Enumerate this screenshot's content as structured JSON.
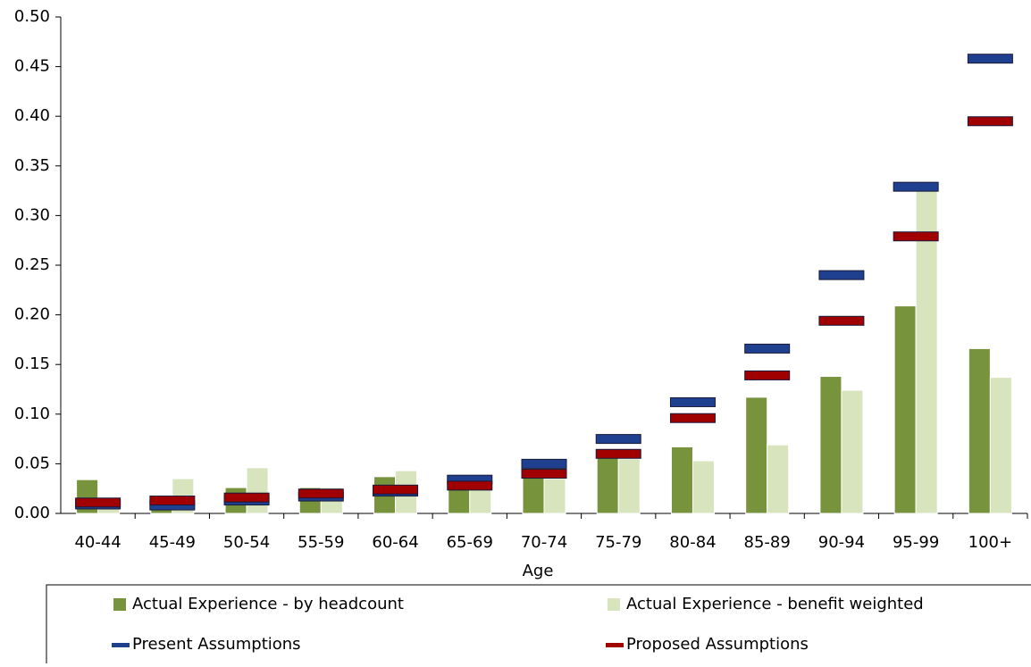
{
  "chart_data": {
    "type": "bar",
    "x_label": "Age",
    "categories": [
      "40-44",
      "45-49",
      "50-54",
      "55-59",
      "60-64",
      "65-69",
      "70-74",
      "75-79",
      "80-84",
      "85-89",
      "90-94",
      "95-99",
      "100+"
    ],
    "series": [
      {
        "name": "Actual Experience - by headcount",
        "color": "#77933c",
        "style": "bar",
        "values": [
          0.034,
          0.01,
          0.026,
          0.026,
          0.037,
          0.034,
          0.04,
          0.058,
          0.067,
          0.117,
          0.138,
          0.209,
          0.166
        ]
      },
      {
        "name": "Actual Experience - benefit weighted",
        "color": "#d7e4bd",
        "style": "bar",
        "values": [
          0.005,
          0.035,
          0.046,
          0.026,
          0.043,
          0.03,
          0.035,
          0.055,
          0.053,
          0.069,
          0.124,
          0.325,
          0.137
        ]
      },
      {
        "name": "Present Assumptions",
        "color": "#1f3f8f",
        "style": "dash",
        "values": [
          0.009,
          0.008,
          0.013,
          0.017,
          0.022,
          0.034,
          0.05,
          0.075,
          0.112,
          0.166,
          0.24,
          0.329,
          0.458
        ]
      },
      {
        "name": "Proposed Assumptions",
        "color": "#a00000",
        "style": "dash",
        "values": [
          0.011,
          0.013,
          0.016,
          0.02,
          0.024,
          0.028,
          0.04,
          0.06,
          0.096,
          0.139,
          0.194,
          0.279,
          0.395
        ]
      }
    ],
    "ylim": [
      0,
      0.5
    ],
    "yticks": [
      {
        "value": 0,
        "label": "0.00"
      },
      {
        "value": 0.05,
        "label": "0.05"
      },
      {
        "value": 0.1,
        "label": "0.10"
      },
      {
        "value": 0.15,
        "label": "0.15"
      },
      {
        "value": 0.2,
        "label": "0.20"
      },
      {
        "value": 0.25,
        "label": "0.25"
      },
      {
        "value": 0.3,
        "label": "0.30"
      },
      {
        "value": 0.35,
        "label": "0.35"
      },
      {
        "value": 0.4,
        "label": "0.40"
      },
      {
        "value": 0.45,
        "label": "0.45"
      },
      {
        "value": 0.5,
        "label": "0.50"
      }
    ],
    "legend": "bottom"
  }
}
